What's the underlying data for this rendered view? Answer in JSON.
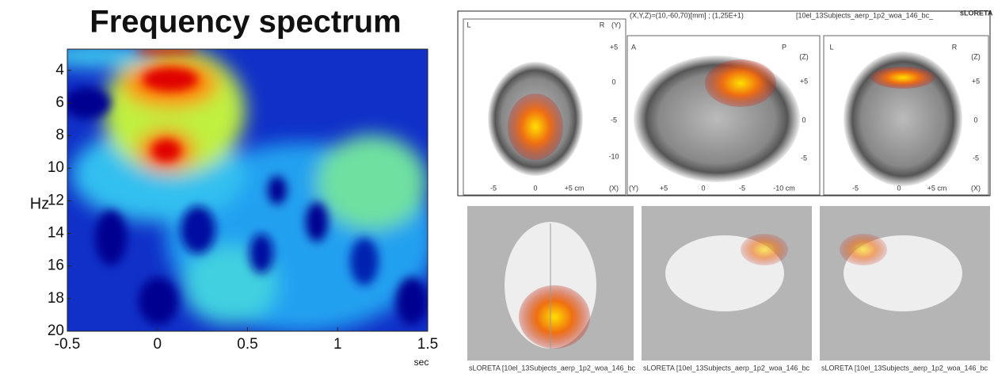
{
  "chart_data": {
    "type": "heatmap",
    "title": "Frequency spectrum",
    "ylabel": "Hz",
    "xlabel": "sec",
    "xlim": [
      -0.5,
      1.5
    ],
    "xticks": [
      -0.5,
      0,
      0.5,
      1,
      1.5
    ],
    "ylim": [
      20,
      2.7
    ],
    "yticks": [
      4,
      6,
      8,
      10,
      12,
      14,
      16,
      18,
      20
    ]
  },
  "source_panel": {
    "header": [
      "(X,Y,Z)=(10,-60,70)[mm] ; (1,25E+1)",
      "[10el_13Subjects_aerp_1p2_woa_146_bc_",
      "sLORETA"
    ],
    "axial": [
      "L",
      "R",
      "(Y)",
      "+5",
      "0",
      "-5",
      "-10",
      "-5",
      "0",
      "+5 cm",
      "(X)"
    ],
    "sagittal": [
      "A",
      "P",
      "(Z)",
      "+5",
      "0",
      "-5",
      "(Y)",
      "+5",
      "0",
      "-5",
      "-10 cm"
    ],
    "coronal": [
      "L",
      "R",
      "(Z)",
      "+5",
      "0",
      "-5",
      "-5",
      "0",
      "+5 cm",
      "(X)"
    ],
    "captions": [
      "sLORETA   [10el_13Subjects_aerp_1p2_woa_146_bc",
      "sLORETA   [10el_13Subjects_aerp_1p2_woa_146_bc",
      "sLORETA   [10el_13Subjects_aerp_1p2_woa_146_bc"
    ]
  }
}
